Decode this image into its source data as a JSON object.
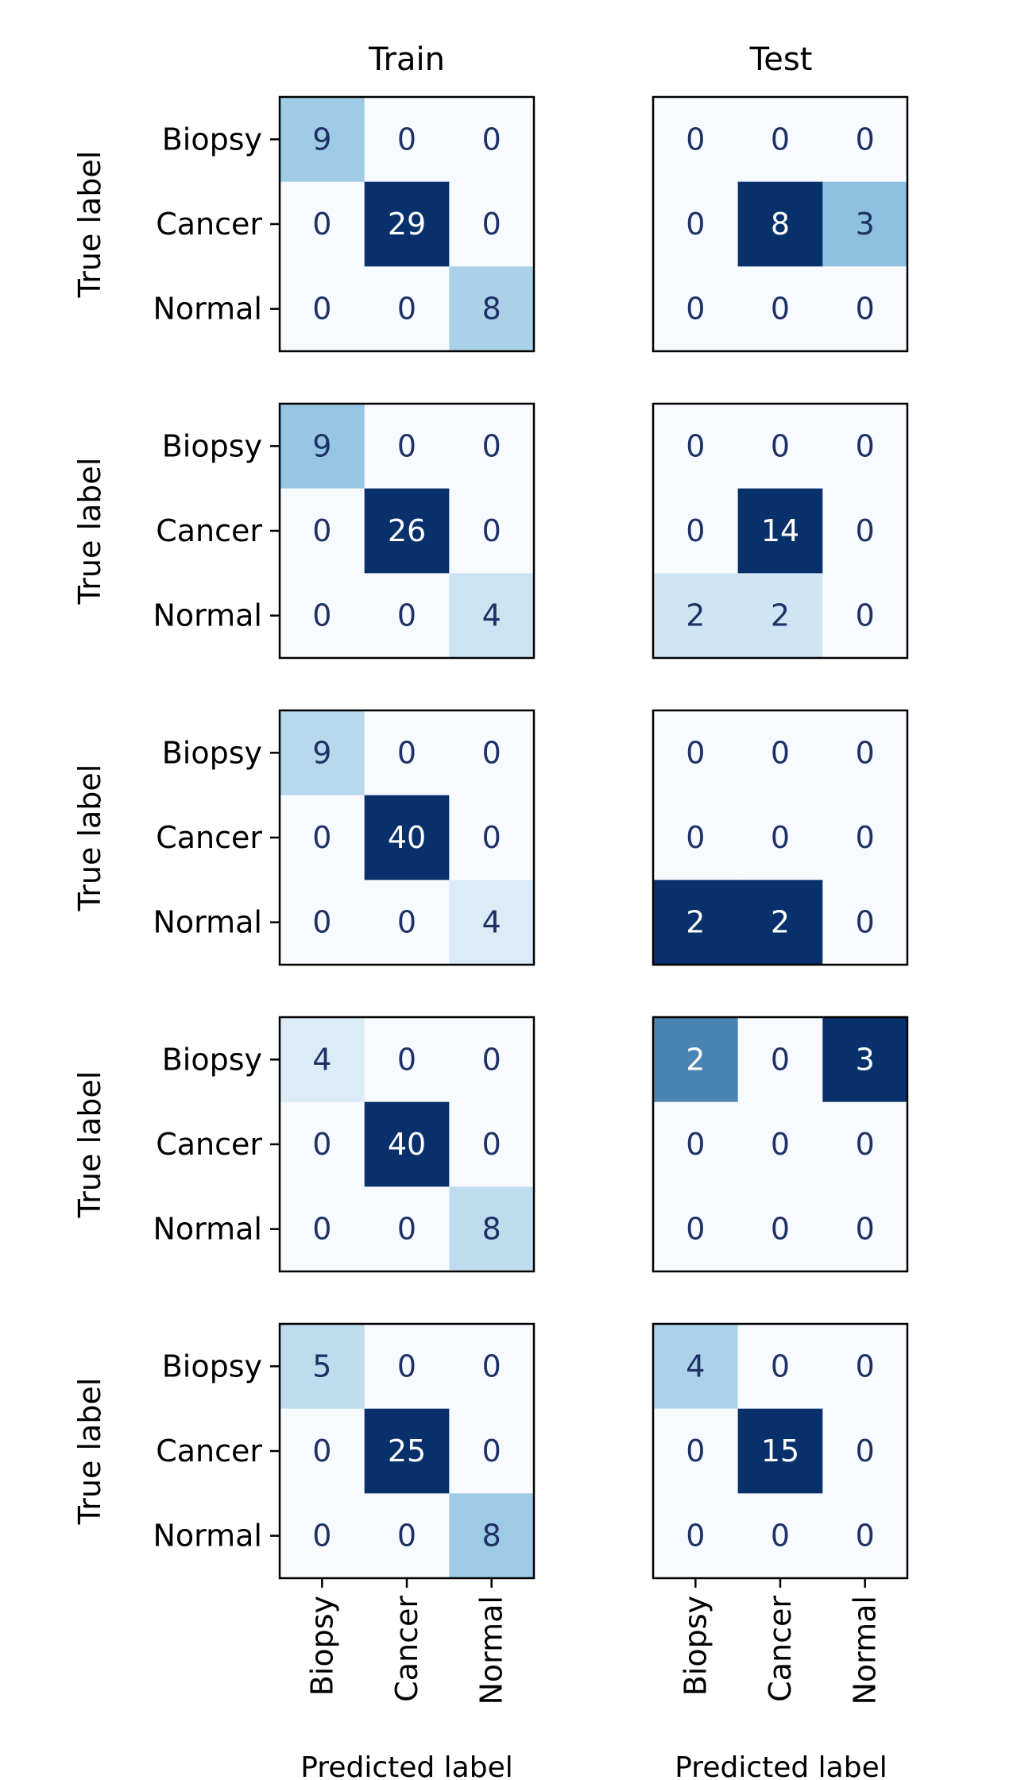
{
  "chart_data": {
    "type": "heatmap",
    "labels": [
      "Biopsy",
      "Cancer",
      "Normal"
    ],
    "column_titles": [
      "Train",
      "Test"
    ],
    "xlabel": "Predicted label",
    "ylabel": "True label",
    "colormap": "Blues",
    "colors": {
      "low": "#f7fbff",
      "mid": "#6baed6",
      "high": "#08306b",
      "text_dark": "#1f3165",
      "text_light": "#ffffff"
    },
    "rows": [
      {
        "train": [
          [
            9,
            0,
            0
          ],
          [
            0,
            29,
            0
          ],
          [
            0,
            0,
            8
          ]
        ],
        "test": [
          [
            0,
            0,
            0
          ],
          [
            0,
            8,
            3
          ],
          [
            0,
            0,
            0
          ]
        ]
      },
      {
        "train": [
          [
            9,
            0,
            0
          ],
          [
            0,
            26,
            0
          ],
          [
            0,
            0,
            4
          ]
        ],
        "test": [
          [
            0,
            0,
            0
          ],
          [
            0,
            14,
            0
          ],
          [
            2,
            2,
            0
          ]
        ]
      },
      {
        "train": [
          [
            9,
            0,
            0
          ],
          [
            0,
            40,
            0
          ],
          [
            0,
            0,
            4
          ]
        ],
        "test": [
          [
            0,
            0,
            0
          ],
          [
            0,
            0,
            0
          ],
          [
            2,
            2,
            0
          ]
        ]
      },
      {
        "train": [
          [
            4,
            0,
            0
          ],
          [
            0,
            40,
            0
          ],
          [
            0,
            0,
            8
          ]
        ],
        "test": [
          [
            2,
            0,
            3
          ],
          [
            0,
            0,
            0
          ],
          [
            0,
            0,
            0
          ]
        ]
      },
      {
        "train": [
          [
            5,
            0,
            0
          ],
          [
            0,
            25,
            0
          ],
          [
            0,
            0,
            8
          ]
        ],
        "test": [
          [
            4,
            0,
            0
          ],
          [
            0,
            15,
            0
          ],
          [
            0,
            0,
            0
          ]
        ]
      }
    ]
  }
}
